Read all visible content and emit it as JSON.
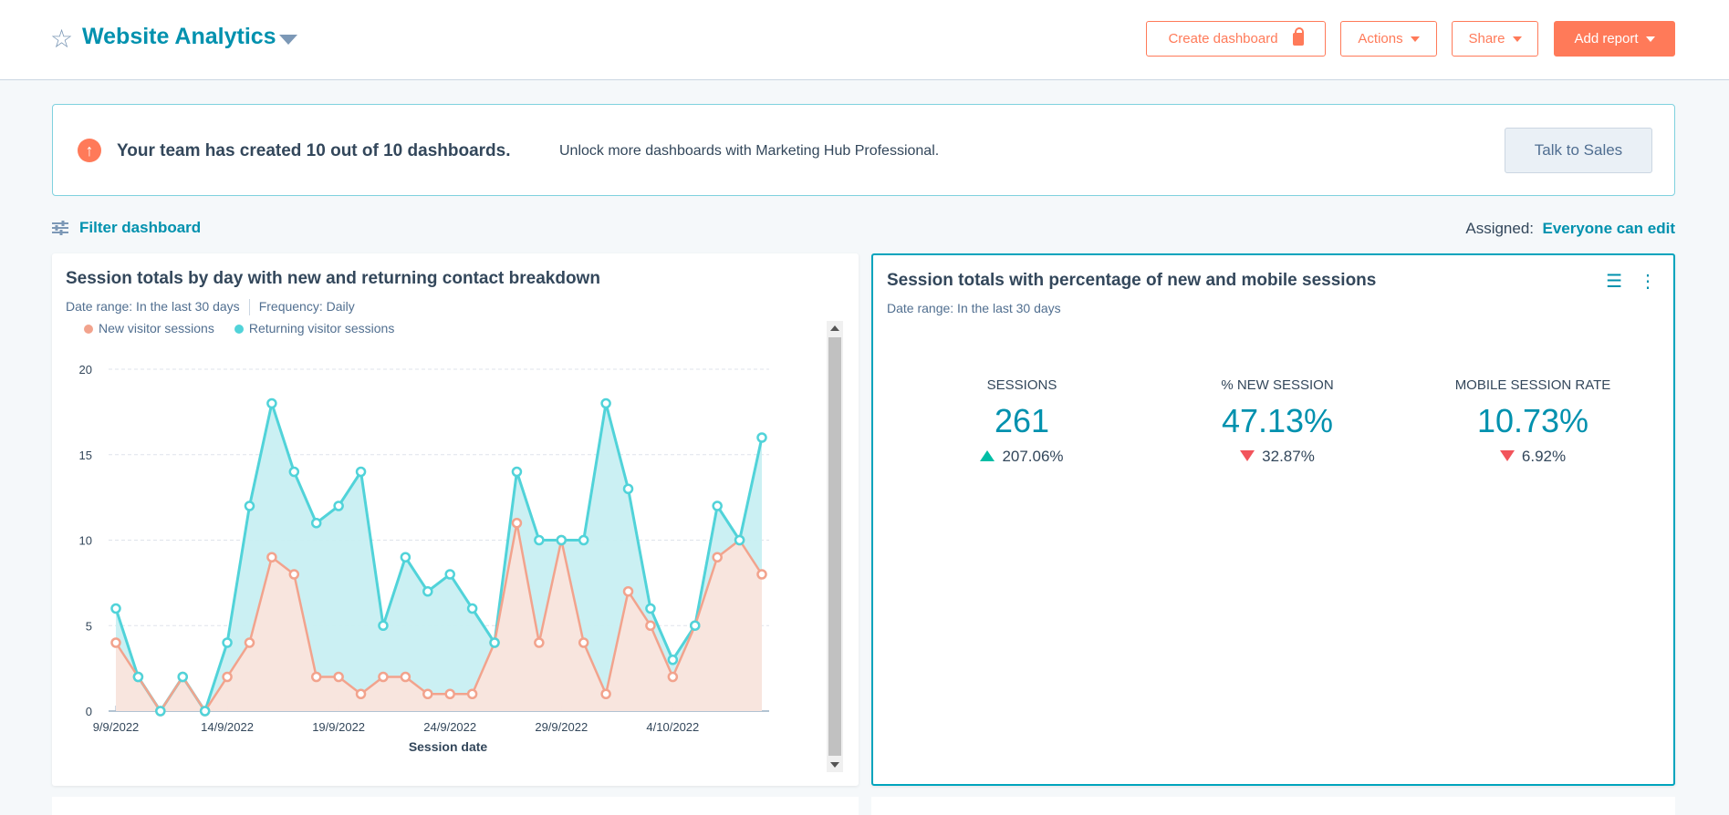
{
  "header": {
    "title": "Website Analytics",
    "create_dashboard": "Create dashboard",
    "actions": "Actions",
    "share": "Share",
    "add_report": "Add report"
  },
  "banner": {
    "bold": "Your team has created 10 out of 10 dashboards.",
    "text": "Unlock more dashboards with Marketing Hub Professional.",
    "button": "Talk to Sales"
  },
  "filter": {
    "label": "Filter dashboard",
    "assigned_label": "Assigned:",
    "assigned_value": "Everyone can edit"
  },
  "left_card": {
    "title": "Session totals by day with new and returning contact breakdown",
    "date_range": "Date range: In the last 30 days",
    "frequency": "Frequency: Daily"
  },
  "right_card": {
    "title": "Session totals with percentage of new and mobile sessions",
    "date_range": "Date range: In the last 30 days",
    "metrics": [
      {
        "label": "SESSIONS",
        "value": "261",
        "change": "207.06%",
        "direction": "up"
      },
      {
        "label": "% NEW SESSION",
        "value": "47.13%",
        "change": "32.87%",
        "direction": "down"
      },
      {
        "label": "MOBILE SESSION RATE",
        "value": "10.73%",
        "change": "6.92%",
        "direction": "down"
      }
    ]
  },
  "colors": {
    "accent": "#0091ae",
    "brand": "#ff7a59",
    "new": "#f2a38d",
    "returning": "#51d3d9",
    "up": "#00bda5",
    "down": "#f2545b"
  },
  "chart_data": {
    "type": "area",
    "xlabel": "Session date",
    "ylabel": "",
    "ylim": [
      0,
      20
    ],
    "yticks": [
      0,
      5,
      10,
      15,
      20
    ],
    "xtick_labels": [
      "9/9/2022",
      "14/9/2022",
      "19/9/2022",
      "24/9/2022",
      "29/9/2022",
      "4/10/2022"
    ],
    "x": [
      "9/9/2022",
      "10/9/2022",
      "11/9/2022",
      "12/9/2022",
      "13/9/2022",
      "14/9/2022",
      "15/9/2022",
      "16/9/2022",
      "17/9/2022",
      "18/9/2022",
      "19/9/2022",
      "20/9/2022",
      "21/9/2022",
      "22/9/2022",
      "23/9/2022",
      "24/9/2022",
      "25/9/2022",
      "26/9/2022",
      "27/9/2022",
      "28/9/2022",
      "29/9/2022",
      "30/9/2022",
      "1/10/2022",
      "2/10/2022",
      "3/10/2022",
      "4/10/2022",
      "5/10/2022",
      "6/10/2022",
      "7/10/2022",
      "8/10/2022"
    ],
    "grid": true,
    "legend": "top-left",
    "series": [
      {
        "name": "New visitor sessions",
        "color": "#f2a38d",
        "values": [
          4,
          2,
          0,
          2,
          0,
          2,
          4,
          9,
          8,
          2,
          2,
          1,
          2,
          2,
          1,
          1,
          1,
          4,
          11,
          4,
          10,
          4,
          1,
          7,
          5,
          2,
          5,
          9,
          10,
          8
        ]
      },
      {
        "name": "Returning visitor sessions",
        "color": "#51d3d9",
        "values": [
          6,
          2,
          0,
          2,
          0,
          4,
          12,
          18,
          14,
          11,
          12,
          14,
          5,
          9,
          7,
          8,
          6,
          4,
          14,
          10,
          10,
          10,
          18,
          13,
          6,
          3,
          5,
          12,
          10,
          16
        ]
      }
    ]
  }
}
